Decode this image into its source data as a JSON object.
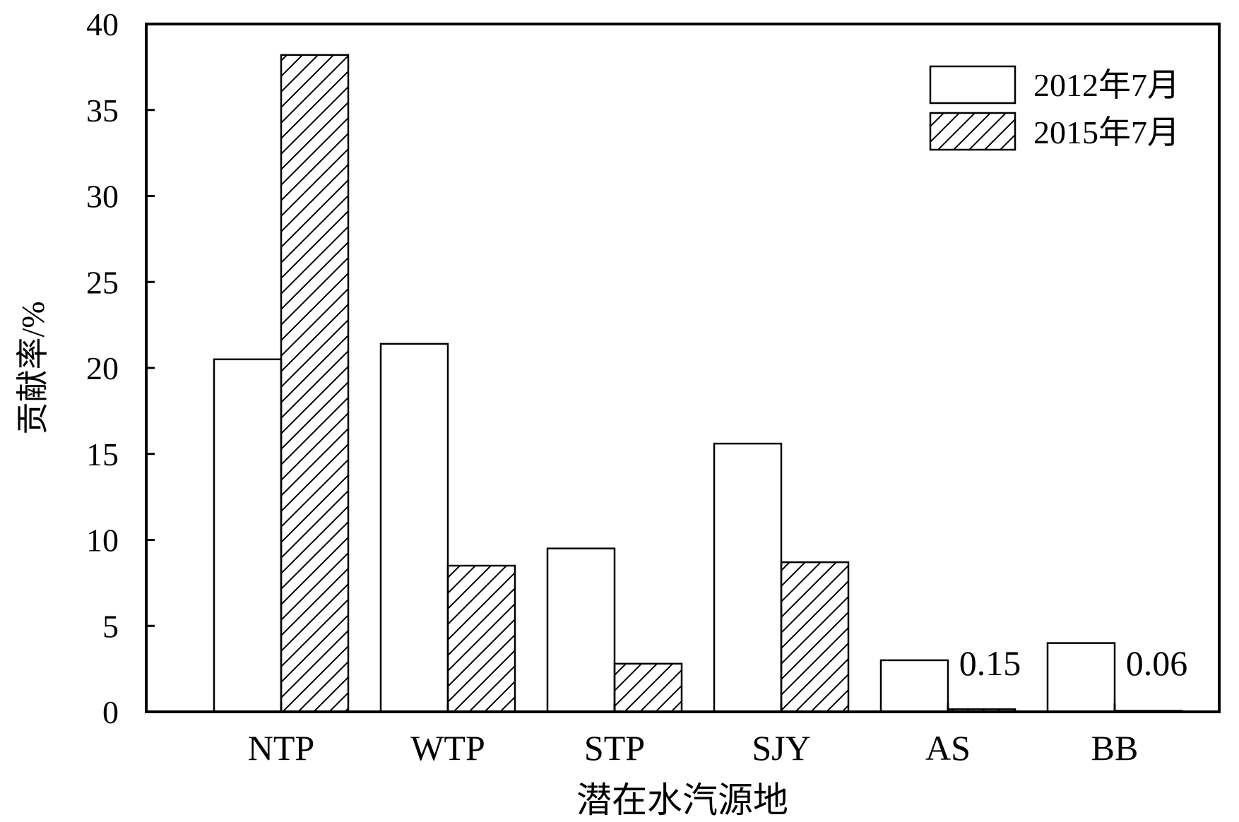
{
  "chart_data": {
    "type": "bar",
    "title": "",
    "xlabel": "潜在水汽源地",
    "ylabel": "贡献率/%",
    "categories": [
      "NTP",
      "WTP",
      "STP",
      "SJY",
      "AS",
      "BB"
    ],
    "series": [
      {
        "name": "2012年7月",
        "pattern": "none",
        "values": [
          20.5,
          21.4,
          9.5,
          15.6,
          3.0,
          4.0
        ]
      },
      {
        "name": "2015年7月",
        "pattern": "hatch",
        "values": [
          38.2,
          8.5,
          2.8,
          8.7,
          0.15,
          0.06
        ]
      }
    ],
    "annotations": [
      {
        "category": "AS",
        "text": "0.15"
      },
      {
        "category": "BB",
        "text": "0.06"
      }
    ],
    "ylim": [
      0,
      40
    ],
    "yticks": [
      0,
      5,
      10,
      15,
      20,
      25,
      30,
      35,
      40
    ],
    "grid": false,
    "legend_position": "top-right",
    "colors": {
      "bar_fill": "#ffffff",
      "stroke": "#000000",
      "hatch": "#000000"
    }
  }
}
